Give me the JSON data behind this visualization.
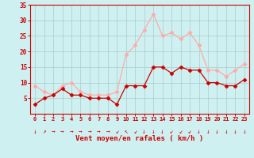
{
  "hours": [
    0,
    1,
    2,
    3,
    4,
    5,
    6,
    7,
    8,
    9,
    10,
    11,
    12,
    13,
    14,
    15,
    16,
    17,
    18,
    19,
    20,
    21,
    22,
    23
  ],
  "wind_avg": [
    3,
    5,
    6,
    8,
    6,
    6,
    5,
    5,
    5,
    3,
    9,
    9,
    9,
    15,
    15,
    13,
    15,
    14,
    14,
    10,
    10,
    9,
    9,
    11
  ],
  "wind_gust": [
    9,
    7,
    6,
    9,
    10,
    7,
    6,
    6,
    6,
    7,
    19,
    22,
    27,
    32,
    25,
    26,
    24,
    26,
    22,
    14,
    14,
    12,
    14,
    16
  ],
  "color_avg": "#cc0000",
  "color_gust": "#ffaaaa",
  "bg_color": "#cff0f0",
  "grid_color": "#aacccc",
  "xlabel": "Vent moyen/en rafales ( km/h )",
  "ylim": [
    0,
    35
  ],
  "yticks": [
    5,
    10,
    15,
    20,
    25,
    30,
    35
  ],
  "xlabel_color": "#cc0000",
  "tick_color": "#cc0000",
  "spine_color": "#cc0000",
  "arrow_chars": [
    "↓",
    "↗",
    "→",
    "→",
    "→",
    "→",
    "→",
    "→",
    "→",
    "↙",
    "↖",
    "↙",
    "↓",
    "↓",
    "↓",
    "↙",
    "↙",
    "↙",
    "↓",
    "↓",
    "↓",
    "↓",
    "↓",
    "↓"
  ]
}
